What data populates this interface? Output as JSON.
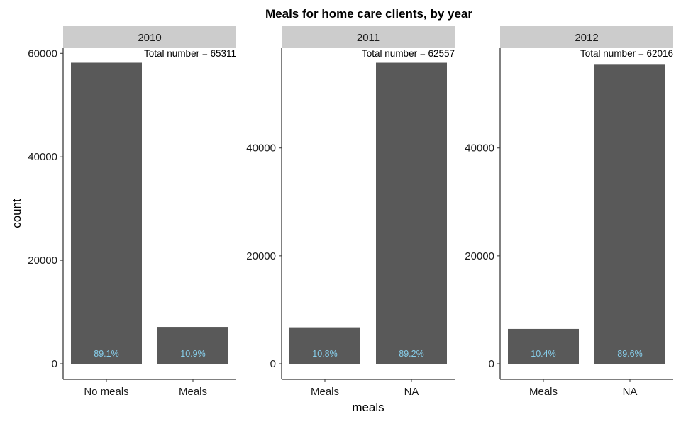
{
  "chart_data": {
    "type": "bar",
    "title": "Meals for home care clients, by year",
    "xlabel": "meals",
    "ylabel": "count",
    "grid": false,
    "bar_color": "#595959",
    "strip_color": "#cccccc",
    "label_color": "#87ceeb",
    "panels": [
      {
        "facet": "2010",
        "total_label": "Total number = 65311",
        "ylim": [
          0,
          61000
        ],
        "yticks": [
          0,
          20000,
          40000,
          60000
        ],
        "ytick_labels": [
          "0",
          "20000",
          "40000",
          "60000"
        ],
        "categories": [
          "No meals",
          "Meals"
        ],
        "values": [
          58191,
          7120
        ],
        "pct_labels": [
          "89.1%",
          "10.9%"
        ]
      },
      {
        "facet": "2011",
        "total_label": "Total number = 62557",
        "ylim": [
          0,
          58500
        ],
        "yticks": [
          0,
          20000,
          40000
        ],
        "ytick_labels": [
          "0",
          "20000",
          "40000"
        ],
        "categories": [
          "Meals",
          "NA"
        ],
        "values": [
          6756,
          55801
        ],
        "pct_labels": [
          "10.8%",
          "89.2%"
        ]
      },
      {
        "facet": "2012",
        "total_label": "Total number = 62016",
        "ylim": [
          0,
          58500
        ],
        "yticks": [
          0,
          20000,
          40000
        ],
        "ytick_labels": [
          "0",
          "20000",
          "40000"
        ],
        "categories": [
          "Meals",
          "NA"
        ],
        "values": [
          6450,
          55566
        ],
        "pct_labels": [
          "10.4%",
          "89.6%"
        ]
      }
    ]
  }
}
